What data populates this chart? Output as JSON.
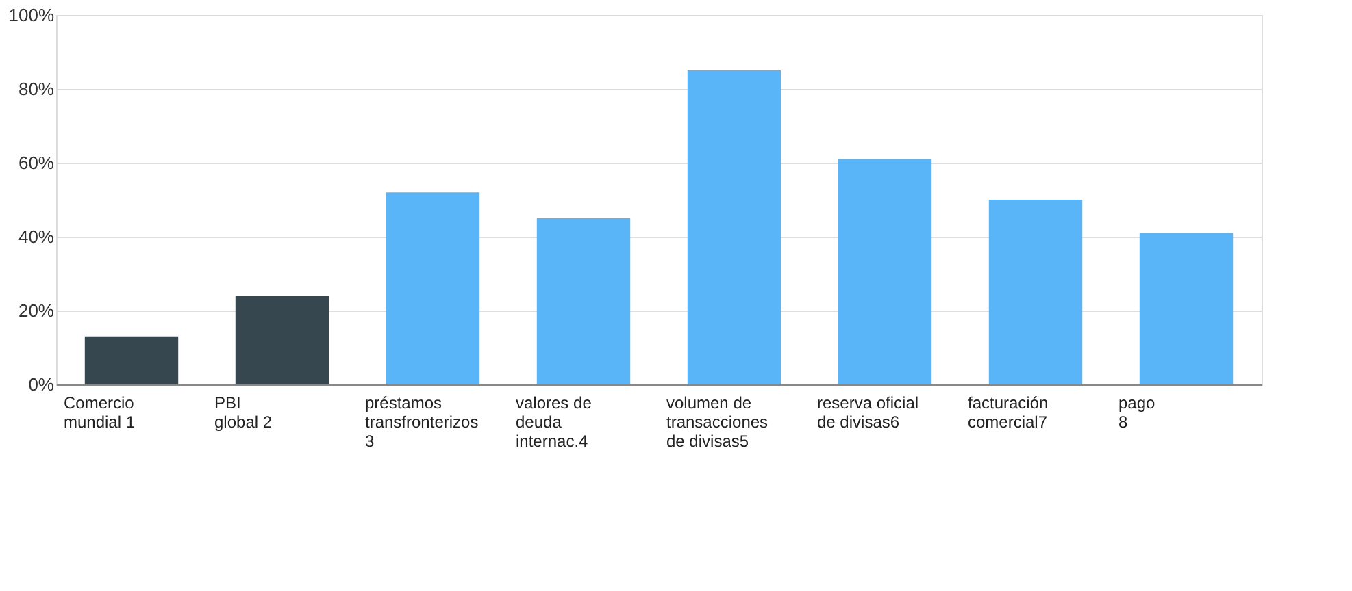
{
  "chart_data": {
    "type": "bar",
    "categories": [
      "Comercio\nmundial 1",
      "PBI\nglobal 2",
      "préstamos\ntransfronterizos\n3",
      "valores de\ndeuda\ninternac.4",
      "volumen de\ntransacciones\nde divisas5",
      "reserva oficial\nde divisas6",
      "facturación\ncomercial7",
      "pago\n8"
    ],
    "values": [
      13,
      24,
      52,
      45,
      85,
      61,
      50,
      41
    ],
    "colors": [
      "#37474f",
      "#37474f",
      "#5ab4f8",
      "#5ab4f8",
      "#5ab4f8",
      "#5ab4f8",
      "#5ab4f8",
      "#5ab4f8"
    ],
    "ylim": [
      0,
      100
    ],
    "yticks": [
      {
        "value": 0,
        "label": "0%"
      },
      {
        "value": 20,
        "label": "20%"
      },
      {
        "value": 40,
        "label": "40%"
      },
      {
        "value": 60,
        "label": "60%"
      },
      {
        "value": 80,
        "label": "80%"
      },
      {
        "value": 100,
        "label": "100%"
      }
    ],
    "grid": "y"
  }
}
